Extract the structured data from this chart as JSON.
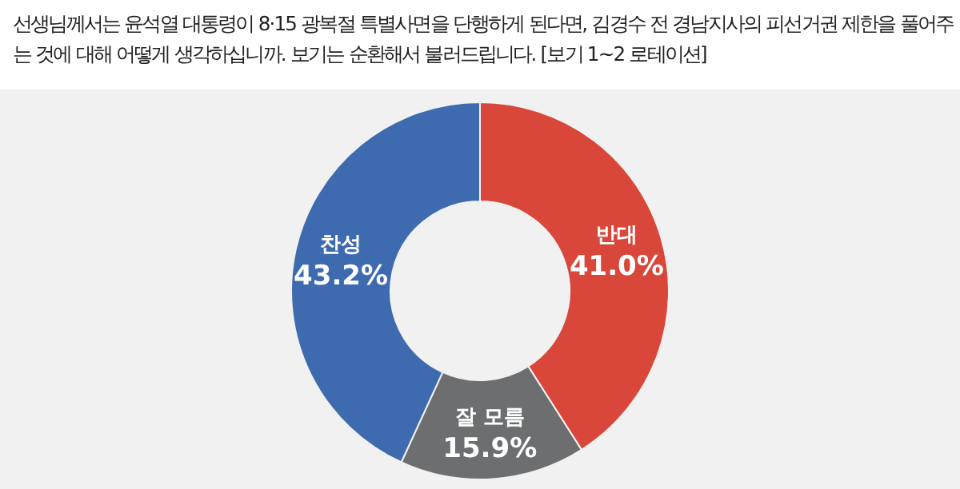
{
  "chart_data": {
    "type": "donut",
    "title": "선생님께서는 윤석열 대통령이 8·15 광복절 특별사면을 단행하게 된다면, 김경수 전 경남지사의 피선거권 제한을 풀어주는 것에 대해 어떻게 생각하십니까. 보기는 순환해서 불러드립니다. [보기 1~2 로테이션]",
    "categories": [
      "반대",
      "잘 모름",
      "찬성"
    ],
    "values": [
      41.0,
      15.9,
      43.2
    ],
    "colors": [
      "#d8473a",
      "#6d6e70",
      "#3e6bb0"
    ],
    "value_labels": [
      "41.0%",
      "15.9%",
      "43.2%"
    ]
  }
}
